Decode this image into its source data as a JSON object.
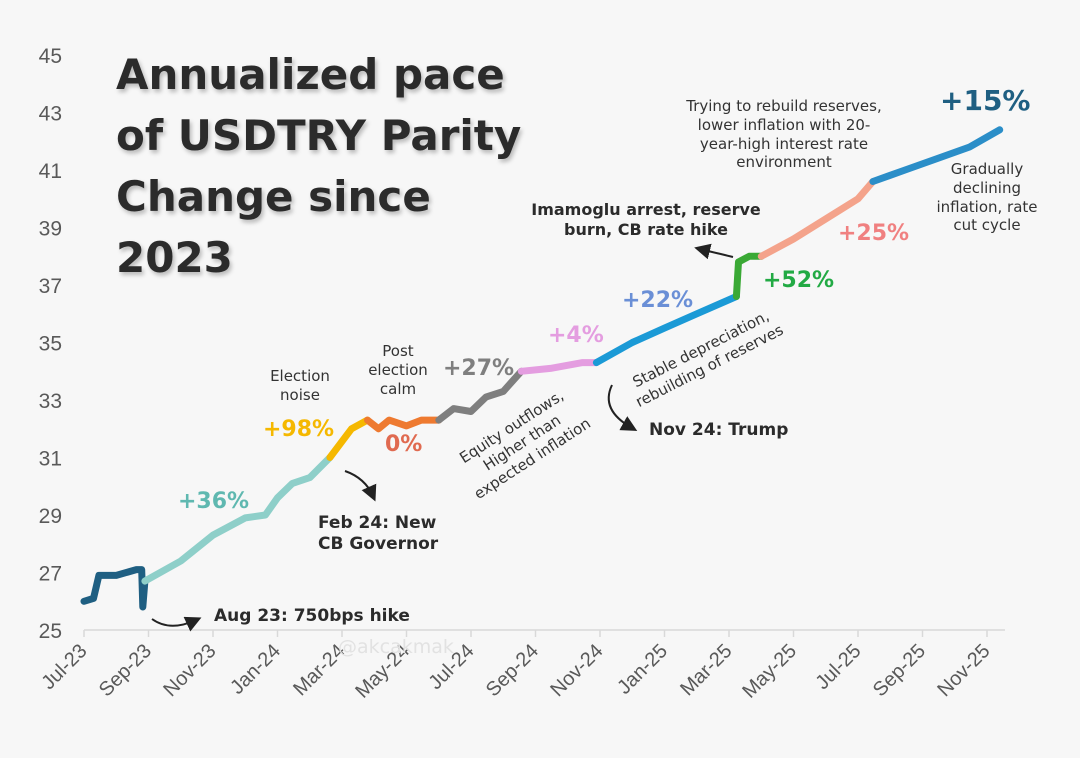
{
  "chart_data": {
    "type": "line",
    "title": "Annualized pace of USDTRY Parity Change since 2023",
    "xlabel": "",
    "ylabel": "",
    "ylim": [
      25,
      45
    ],
    "xlim": [
      "2023-07-01",
      "2025-11-01"
    ],
    "y_ticks": [
      "25",
      "27",
      "29",
      "31",
      "33",
      "35",
      "37",
      "39",
      "41",
      "43",
      "45"
    ],
    "x_ticks": [
      "Jul-23",
      "Sep-23",
      "Nov-23",
      "Jan-24",
      "Mar-24",
      "May-24",
      "Jul-24",
      "Sep-24",
      "Nov-24",
      "Jan-25",
      "Mar-25",
      "May-25",
      "Jul-25",
      "Sep-25",
      "Nov-25"
    ],
    "grid": false,
    "series": [
      {
        "color": "#1f5f82",
        "label": "",
        "points": [
          [
            "2023-07-01",
            26.0
          ],
          [
            "2023-07-10",
            26.1
          ],
          [
            "2023-07-15",
            26.9
          ],
          [
            "2023-08-01",
            26.9
          ],
          [
            "2023-08-20",
            27.1
          ],
          [
            "2023-08-25",
            27.1
          ],
          [
            "2023-08-26",
            25.8
          ],
          [
            "2023-08-28",
            26.7
          ]
        ]
      },
      {
        "color": "#8ecfc9",
        "label": "+36%",
        "points": [
          [
            "2023-08-28",
            26.7
          ],
          [
            "2023-10-01",
            27.4
          ],
          [
            "2023-11-01",
            28.3
          ],
          [
            "2023-12-01",
            28.9
          ],
          [
            "2023-12-20",
            29.0
          ],
          [
            "2024-01-01",
            29.6
          ],
          [
            "2024-01-15",
            30.1
          ],
          [
            "2024-02-01",
            30.3
          ],
          [
            "2024-02-20",
            31.0
          ]
        ]
      },
      {
        "color": "#f5b800",
        "label": "+98%",
        "points": [
          [
            "2024-02-20",
            31.0
          ],
          [
            "2024-03-10",
            32.0
          ],
          [
            "2024-03-25",
            32.3
          ]
        ]
      },
      {
        "color": "#ee7a30",
        "label": "0%",
        "points": [
          [
            "2024-03-25",
            32.3
          ],
          [
            "2024-04-05",
            32.0
          ],
          [
            "2024-04-15",
            32.3
          ],
          [
            "2024-05-01",
            32.1
          ],
          [
            "2024-05-15",
            32.3
          ],
          [
            "2024-06-01",
            32.3
          ]
        ]
      },
      {
        "color": "#7f7f7f",
        "label": "+27%",
        "points": [
          [
            "2024-06-01",
            32.3
          ],
          [
            "2024-06-15",
            32.7
          ],
          [
            "2024-07-01",
            32.6
          ],
          [
            "2024-07-15",
            33.1
          ],
          [
            "2024-08-01",
            33.3
          ],
          [
            "2024-08-18",
            34.0
          ]
        ]
      },
      {
        "color": "#e49de0",
        "label": "+4%",
        "points": [
          [
            "2024-08-18",
            34.0
          ],
          [
            "2024-09-15",
            34.1
          ],
          [
            "2024-10-15",
            34.3
          ],
          [
            "2024-10-28",
            34.3
          ]
        ]
      },
      {
        "color": "#1b9ad6",
        "label": "+22%",
        "points": [
          [
            "2024-10-28",
            34.3
          ],
          [
            "2024-12-01",
            35.0
          ],
          [
            "2025-01-01",
            35.5
          ],
          [
            "2025-02-01",
            36.0
          ],
          [
            "2025-03-08",
            36.6
          ]
        ]
      },
      {
        "color": "#3aa935",
        "label": "+52%",
        "points": [
          [
            "2025-03-08",
            36.6
          ],
          [
            "2025-03-10",
            37.8
          ],
          [
            "2025-03-20",
            38.0
          ],
          [
            "2025-04-01",
            38.0
          ]
        ]
      },
      {
        "color": "#f4a38b",
        "label": "+25%",
        "points": [
          [
            "2025-04-01",
            38.0
          ],
          [
            "2025-05-01",
            38.6
          ],
          [
            "2025-06-01",
            39.3
          ],
          [
            "2025-07-01",
            40.0
          ],
          [
            "2025-07-15",
            40.6
          ]
        ]
      },
      {
        "color": "#2b8ec8",
        "label": "+15%",
        "points": [
          [
            "2025-07-15",
            40.6
          ],
          [
            "2025-08-15",
            41.0
          ],
          [
            "2025-09-15",
            41.4
          ],
          [
            "2025-10-15",
            41.8
          ],
          [
            "2025-11-13",
            42.4
          ]
        ]
      }
    ],
    "labels": {
      "p36": {
        "text": "+36%",
        "color": "#5fb8b0"
      },
      "p98": {
        "text": "+98%",
        "color": "#f5b800"
      },
      "p0": {
        "text": "0%",
        "color": "#e06a50"
      },
      "p27": {
        "text": "+27%",
        "color": "#7f7f7f"
      },
      "p4": {
        "text": "+4%",
        "color": "#e49de0"
      },
      "p22": {
        "text": "+22%",
        "color": "#6a8fd6"
      },
      "p52": {
        "text": "+52%",
        "color": "#22aa44"
      },
      "p25": {
        "text": "+25%",
        "color": "#f08080"
      },
      "p15": {
        "text": "+15%",
        "color": "#1f5f82"
      }
    },
    "annotations": {
      "aug23": "Aug 23: 750bps hike",
      "feb24_1": "Feb 24: New",
      "feb24_2": "CB Governor",
      "election_1": "Election",
      "election_2": "noise",
      "post_1": "Post",
      "post_2": "election",
      "post_3": "calm",
      "equity_1": "Equity outflows,",
      "equity_2": "Higher than",
      "equity_3": "expected inflation",
      "nov24": "Nov 24: Trump",
      "stable_1": "Stable depreciation,",
      "stable_2": "rebuilding of reserves",
      "imam_1": "Imamoglu arrest, reserve",
      "imam_2": "burn, CB rate hike",
      "rebuild_1": "Trying to rebuild reserves,",
      "rebuild_2": "lower inflation with 20-",
      "rebuild_3": "year-high interest rate",
      "rebuild_4": "environment",
      "grad_1": "Gradually",
      "grad_2": "declining",
      "grad_3": "inflation, rate",
      "grad_4": "cut cycle"
    },
    "watermark": "@akcakmak"
  }
}
